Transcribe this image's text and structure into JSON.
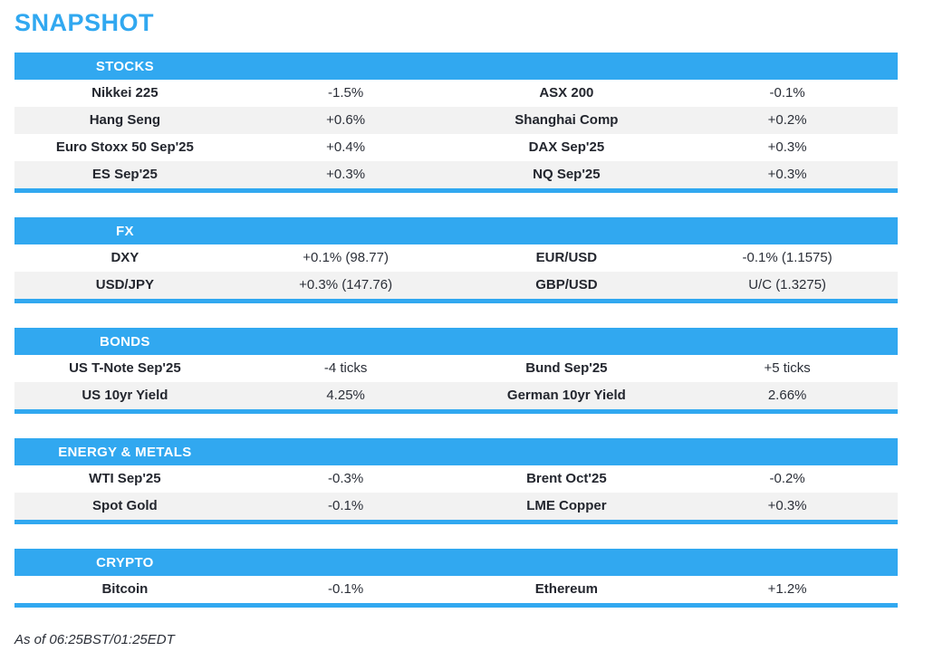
{
  "page": {
    "title": "SNAPSHOT",
    "footer": "As of 06:25BST/01:25EDT"
  },
  "colors": {
    "accent": "#31a8f0",
    "row_alt": "#f2f2f2",
    "text": "#23262e",
    "header_text": "#ffffff"
  },
  "sections": [
    {
      "label": "STOCKS",
      "rows": [
        {
          "name1": "Nikkei 225",
          "value1": "-1.5%",
          "name2": "ASX 200",
          "value2": "-0.1%"
        },
        {
          "name1": "Hang Seng",
          "value1": "+0.6%",
          "name2": "Shanghai Comp",
          "value2": "+0.2%"
        },
        {
          "name1": "Euro Stoxx 50 Sep'25",
          "value1": "+0.4%",
          "name2": "DAX Sep'25",
          "value2": "+0.3%"
        },
        {
          "name1": "ES Sep'25",
          "value1": "+0.3%",
          "name2": "NQ Sep'25",
          "value2": "+0.3%"
        }
      ]
    },
    {
      "label": "FX",
      "rows": [
        {
          "name1": "DXY",
          "value1": "+0.1% (98.77)",
          "name2": "EUR/USD",
          "value2": "-0.1% (1.1575)"
        },
        {
          "name1": "USD/JPY",
          "value1": "+0.3% (147.76)",
          "name2": "GBP/USD",
          "value2": "U/C (1.3275)"
        }
      ]
    },
    {
      "label": "BONDS",
      "rows": [
        {
          "name1": "US T-Note Sep'25",
          "value1": "-4 ticks",
          "name2": "Bund Sep'25",
          "value2": "+5 ticks"
        },
        {
          "name1": "US 10yr Yield",
          "value1": "4.25%",
          "name2": "German 10yr Yield",
          "value2": "2.66%"
        }
      ]
    },
    {
      "label": "ENERGY & METALS",
      "rows": [
        {
          "name1": "WTI Sep'25",
          "value1": "-0.3%",
          "name2": "Brent Oct'25",
          "value2": "-0.2%"
        },
        {
          "name1": "Spot Gold",
          "value1": "-0.1%",
          "name2": "LME Copper",
          "value2": "+0.3%"
        }
      ]
    },
    {
      "label": "CRYPTO",
      "rows": [
        {
          "name1": "Bitcoin",
          "value1": "-0.1%",
          "name2": "Ethereum",
          "value2": "+1.2%"
        }
      ]
    }
  ]
}
